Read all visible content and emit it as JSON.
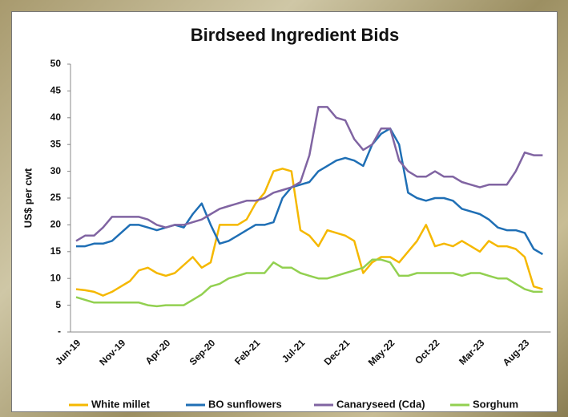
{
  "chart_data": {
    "type": "line",
    "title": "Birdseed Ingredient Bids",
    "y_label": "US$ per cwt",
    "categories": [
      "Jun-19",
      null,
      null,
      null,
      null,
      "Nov-19",
      null,
      null,
      null,
      null,
      "Apr-20",
      null,
      null,
      null,
      null,
      "Sep-20",
      null,
      null,
      null,
      null,
      "Feb-21",
      null,
      null,
      null,
      null,
      "Jul-21",
      null,
      null,
      null,
      null,
      "Dec-21",
      null,
      null,
      null,
      null,
      "May-22",
      null,
      null,
      null,
      null,
      "Oct-22",
      null,
      null,
      null,
      null,
      "Mar-23",
      null,
      null,
      null,
      null,
      "Aug-23",
      null,
      null
    ],
    "series": [
      {
        "name": "White millet",
        "color": "#f5b800",
        "values": [
          8,
          7.8,
          7.5,
          6.8,
          7.5,
          8.5,
          9.5,
          11.5,
          12,
          11,
          10.5,
          11,
          12.5,
          14,
          12,
          13,
          20,
          20,
          20,
          21,
          24,
          26,
          30,
          30.5,
          30,
          19,
          18,
          16,
          19,
          18.5,
          18,
          17,
          11,
          13,
          14,
          14,
          13,
          15,
          17,
          20,
          16,
          16.5,
          16,
          17,
          16,
          15,
          17,
          16,
          16,
          15.5,
          14,
          8.5,
          8
        ]
      },
      {
        "name": "BO sunflowers",
        "color": "#1f6fb5",
        "values": [
          16,
          16,
          16.5,
          16.5,
          17,
          18.5,
          20,
          20,
          19.5,
          19,
          19.5,
          20,
          19.5,
          22,
          24,
          20,
          16.5,
          17,
          18,
          19,
          20,
          20,
          20.5,
          25,
          27,
          27.5,
          28,
          30,
          31,
          32,
          32.5,
          32,
          31,
          35,
          37,
          38,
          35,
          26,
          25,
          24.5,
          25,
          25,
          24.5,
          23,
          22.5,
          22,
          21,
          19.5,
          19,
          19,
          18.5,
          15.5,
          14.5
        ]
      },
      {
        "name": "Canaryseed (Cda)",
        "color": "#8064a2",
        "values": [
          17,
          18,
          18,
          19.5,
          21.5,
          21.5,
          21.5,
          21.5,
          21,
          20,
          19.5,
          20,
          20,
          20.5,
          21,
          22,
          23,
          23.5,
          24,
          24.5,
          24.5,
          25,
          26,
          26.5,
          27,
          28,
          33,
          42,
          42,
          40,
          39.5,
          36,
          34,
          35,
          38,
          38,
          32,
          30,
          29,
          29,
          30,
          29,
          29,
          28,
          27.5,
          27,
          27.5,
          27.5,
          27.5,
          30,
          33.5,
          33,
          33
        ]
      },
      {
        "name": "Sorghum",
        "color": "#92d050",
        "values": [
          6.5,
          6,
          5.5,
          5.5,
          5.5,
          5.5,
          5.5,
          5.5,
          5,
          4.8,
          5,
          5,
          5,
          6,
          7,
          8.5,
          9,
          10,
          10.5,
          11,
          11,
          11,
          13,
          12,
          12,
          11,
          10.5,
          10,
          10,
          10.5,
          11,
          11.5,
          12,
          13.5,
          13.5,
          13,
          10.5,
          10.5,
          11,
          11,
          11,
          11,
          11,
          10.5,
          11,
          11,
          10.5,
          10,
          10,
          9,
          8,
          7.5,
          7.5
        ]
      }
    ],
    "ylim": [
      0,
      50
    ],
    "yticks": [
      {
        "value": 0,
        "label": "-"
      },
      5,
      10,
      15,
      20,
      25,
      30,
      35,
      40,
      45,
      50
    ],
    "legend": "bottom",
    "grid": false
  }
}
